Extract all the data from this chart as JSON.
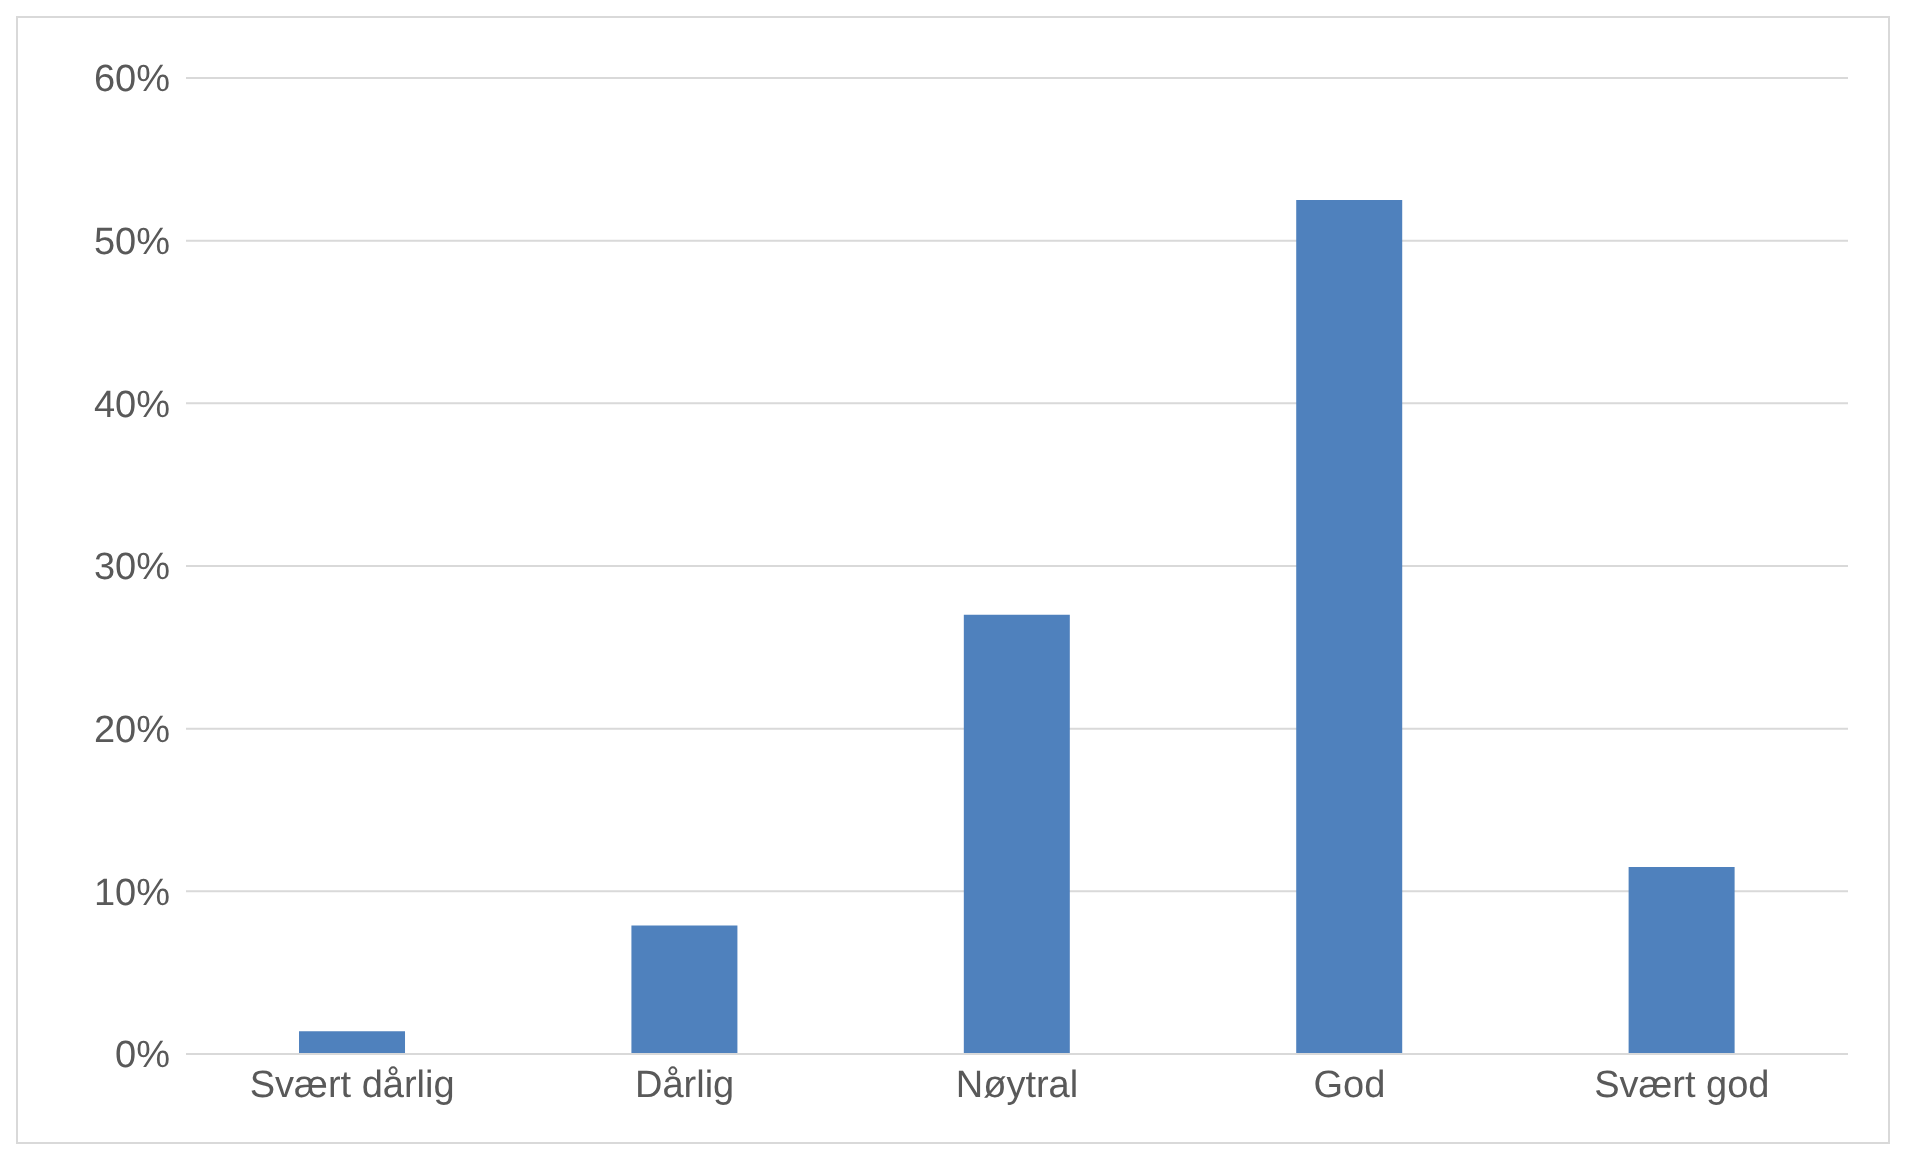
{
  "chart_data": {
    "type": "bar",
    "categories": [
      "Svært dårlig",
      "Dårlig",
      "Nøytral",
      "God",
      "Svært god"
    ],
    "values": [
      1.4,
      7.9,
      27.0,
      52.5,
      11.5
    ],
    "color": "#4f81bd",
    "ylim": [
      0,
      60
    ],
    "yticks": [
      {
        "value": 0,
        "label": "0%"
      },
      {
        "value": 10,
        "label": "10%"
      },
      {
        "value": 20,
        "label": "20%"
      },
      {
        "value": 30,
        "label": "30%"
      },
      {
        "value": 40,
        "label": "40%"
      },
      {
        "value": 50,
        "label": "50%"
      },
      {
        "value": 60,
        "label": "60%"
      }
    ],
    "grid": "y"
  }
}
